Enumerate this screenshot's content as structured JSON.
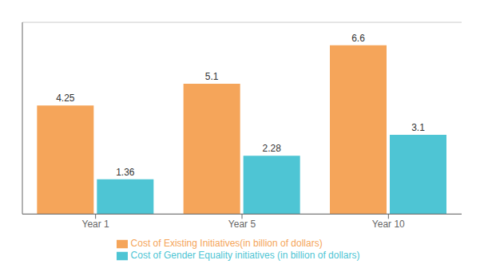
{
  "chart_data": {
    "type": "bar",
    "categories": [
      "Year 1",
      "Year 5",
      "Year 10"
    ],
    "series": [
      {
        "name": "Cost of Existing Initiatives(in billion of dollars)",
        "color": "#F5A55A",
        "values": [
          4.25,
          5.1,
          6.6
        ]
      },
      {
        "name": "Cost of Gender Equality initiatives (in billion of dollars)",
        "color": "#4EC5D4",
        "values": [
          1.36,
          2.28,
          3.1
        ]
      }
    ],
    "ylim": [
      0,
      7.5
    ],
    "yticks": [
      0,
      1,
      2,
      3,
      4,
      5,
      6,
      7
    ],
    "grid": true,
    "legend": "bottom",
    "data_labels": true,
    "tick_labels": "x"
  }
}
